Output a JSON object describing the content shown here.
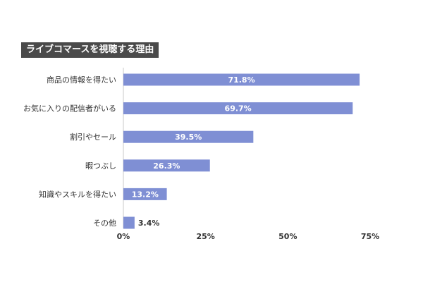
{
  "chart_data": {
    "type": "bar",
    "orientation": "horizontal",
    "title": "ライブコマースを視聴する理由",
    "categories": [
      "商品の情報を得たい",
      "お気に入りの配信者がいる",
      "割引やセール",
      "暇つぶし",
      "知識やスキルを得たい",
      "その他"
    ],
    "values": [
      71.8,
      69.7,
      39.5,
      26.3,
      13.2,
      3.4
    ],
    "value_labels": [
      "71.8%",
      "69.7%",
      "39.5%",
      "26.3%",
      "13.2%",
      "3.4%"
    ],
    "xlim": [
      0,
      75
    ],
    "xticks": [
      0,
      25,
      50,
      75
    ],
    "xtick_labels": [
      "0%",
      "25%",
      "50%",
      "75%"
    ],
    "grid": false,
    "bar_color": "#7f8fd4"
  }
}
